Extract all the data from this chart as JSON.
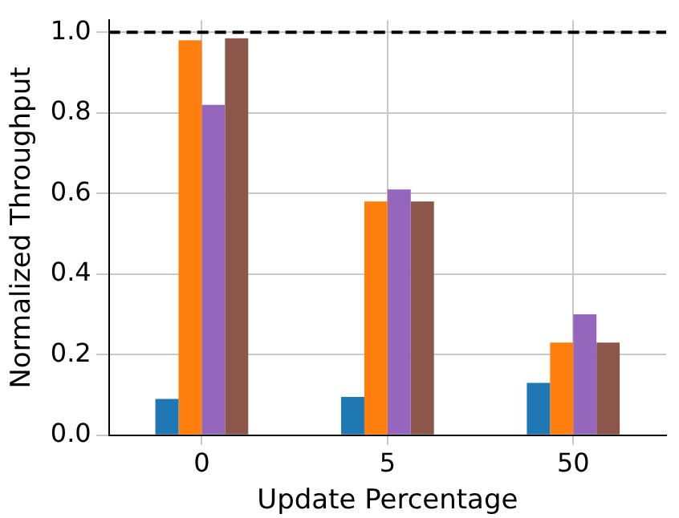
{
  "chart_data": {
    "type": "bar",
    "xlabel": "Update Percentage",
    "ylabel": "Normalized Throughput",
    "categories": [
      "0",
      "5",
      "50"
    ],
    "series": [
      {
        "color": "#1f77b4",
        "values": [
          0.09,
          0.095,
          0.13
        ]
      },
      {
        "color": "#ff7f0e",
        "values": [
          0.98,
          0.58,
          0.23
        ]
      },
      {
        "color": "#9467bd",
        "values": [
          0.82,
          0.61,
          0.3
        ]
      },
      {
        "color": "#8c564b",
        "values": [
          0.985,
          0.58,
          0.23
        ]
      }
    ],
    "ylim": [
      0,
      1.03
    ],
    "yticks": [
      {
        "value": 0,
        "label": "0.0"
      },
      {
        "value": 0.2,
        "label": "0.2"
      },
      {
        "value": 0.4,
        "label": "0.4"
      },
      {
        "value": 0.6,
        "label": "0.6"
      },
      {
        "value": 0.8,
        "label": "0.8"
      },
      {
        "value": 1.0,
        "label": "1.0"
      }
    ],
    "grid": true,
    "legend": false,
    "ref_lines": [
      {
        "axis": "y",
        "value": 1.0,
        "color": "#000000",
        "line_style": "dashed"
      }
    ]
  }
}
